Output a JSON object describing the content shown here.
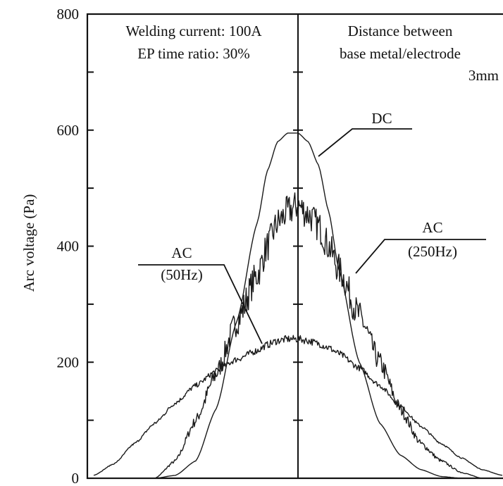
{
  "chart_data": {
    "type": "line",
    "title": "",
    "xlabel": "",
    "ylabel": "Arc voltage (Pa)",
    "ylim": [
      0,
      800
    ],
    "yticks": [
      0,
      200,
      400,
      600,
      800
    ],
    "ytick_labels": [
      "0",
      "200",
      "400",
      "600",
      "800"
    ],
    "grid": false,
    "legend": "none",
    "x": [
      -20,
      -18,
      -16,
      -14,
      -12,
      -10,
      -8,
      -6,
      -4,
      -3,
      -2,
      -1,
      0,
      1,
      2,
      3,
      4,
      6,
      8,
      10,
      12,
      14,
      16,
      18,
      20
    ],
    "series": [
      {
        "values": [
          0,
          0,
          0,
          0,
          5,
          30,
          120,
          270,
          440,
          530,
          580,
          595,
          595,
          580,
          540,
          460,
          360,
          200,
          95,
          40,
          15,
          3,
          0,
          0,
          0
        ]
      },
      {
        "values": [
          0,
          0,
          0,
          0,
          30,
          100,
          180,
          270,
          350,
          400,
          440,
          460,
          470,
          455,
          435,
          400,
          360,
          280,
          200,
          120,
          60,
          30,
          10,
          0,
          0
        ]
      },
      {
        "values": [
          5,
          25,
          60,
          95,
          130,
          160,
          185,
          205,
          220,
          230,
          237,
          240,
          240,
          237,
          232,
          225,
          215,
          190,
          160,
          125,
          90,
          60,
          35,
          15,
          5
        ]
      }
    ],
    "annotations": {
      "left_box": [
        "Welding current: 100A",
        "EP time ratio: 30%"
      ],
      "right_box": [
        "Distance between",
        "base metal/electrode",
        "3mm"
      ],
      "dc_label": "DC",
      "ac250_label": [
        "AC",
        "(250Hz)"
      ],
      "ac50_label": [
        "AC",
        "(50Hz)"
      ]
    }
  }
}
